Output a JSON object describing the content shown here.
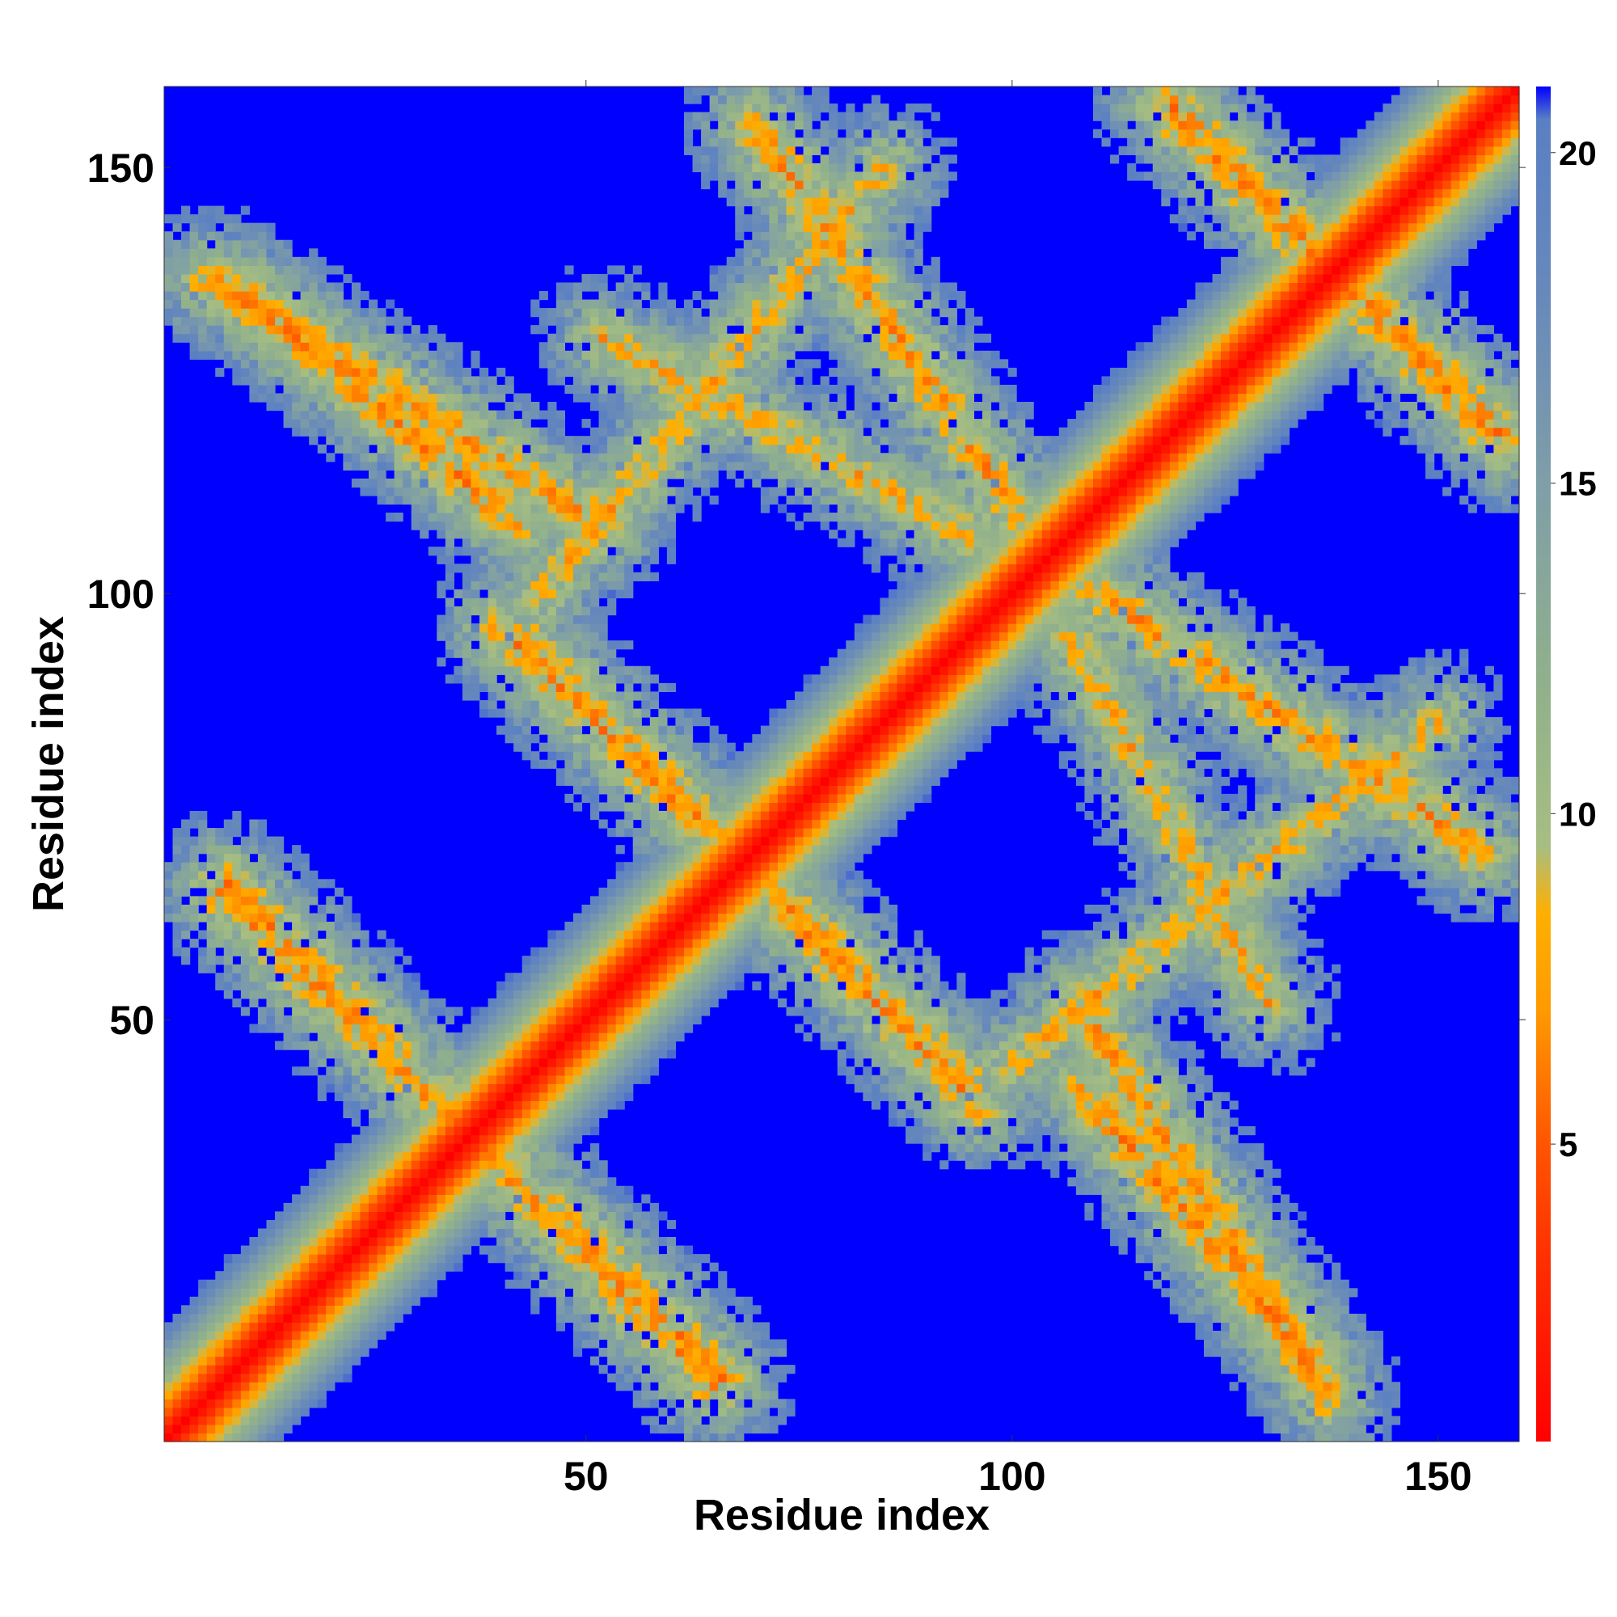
{
  "chart_data": {
    "type": "heatmap",
    "title": "",
    "xlabel": "Residue index",
    "ylabel": "Residue index",
    "n_residues": 159,
    "xlim": [
      1,
      159
    ],
    "ylim": [
      1,
      159
    ],
    "x_ticks": [
      50,
      100,
      150
    ],
    "y_ticks": [
      50,
      100,
      150
    ],
    "colorbar": {
      "range": [
        0.5,
        21
      ],
      "ticks": [
        5,
        10,
        15,
        20
      ],
      "stops": [
        {
          "value": 0.5,
          "color": "#ff0000"
        },
        {
          "value": 3,
          "color": "#ff2a00"
        },
        {
          "value": 5,
          "color": "#ff5500"
        },
        {
          "value": 7,
          "color": "#ff9900"
        },
        {
          "value": 8.5,
          "color": "#ffb000"
        },
        {
          "value": 9.5,
          "color": "#a7be82"
        },
        {
          "value": 12,
          "color": "#90b08c"
        },
        {
          "value": 15,
          "color": "#7f9ea8"
        },
        {
          "value": 18,
          "color": "#6688bb"
        },
        {
          "value": 20.5,
          "color": "#5a80c4"
        },
        {
          "value": 21,
          "color": "#0000ff"
        }
      ],
      "background_color": "#0000ff"
    },
    "contact_regions": [
      {
        "description": "main diagonal",
        "from": [
          1,
          1
        ],
        "to": [
          159,
          159
        ],
        "min_value": 1,
        "band_halfwidth": 14
      },
      {
        "description": "lower-left antiparallel arm",
        "from": [
          7,
          65
        ],
        "to": [
          66,
          8
        ],
        "min_value": 5
      },
      {
        "description": "upper-left antiparallel arm",
        "from": [
          6,
          137
        ],
        "to": [
          52,
          108
        ],
        "min_value": 5
      },
      {
        "description": "upper-left arm extension",
        "from": [
          52,
          130
        ],
        "to": [
          95,
          107
        ],
        "min_value": 6
      },
      {
        "description": "central antiparallel arm",
        "from": [
          40,
          96
        ],
        "to": [
          95,
          42
        ],
        "min_value": 5
      },
      {
        "description": "right lower arm",
        "from": [
          108,
          42
        ],
        "to": [
          135,
          10
        ],
        "min_value": 5
      },
      {
        "description": "right middle arm",
        "from": [
          110,
          100
        ],
        "to": [
          155,
          70
        ],
        "min_value": 5
      },
      {
        "description": "right central arm",
        "from": [
          100,
          45
        ],
        "to": [
          150,
          85
        ],
        "min_value": 6
      },
      {
        "description": "upper-right corner",
        "from": [
          118,
          158
        ],
        "to": [
          155,
          120
        ],
        "min_value": 5
      }
    ]
  }
}
